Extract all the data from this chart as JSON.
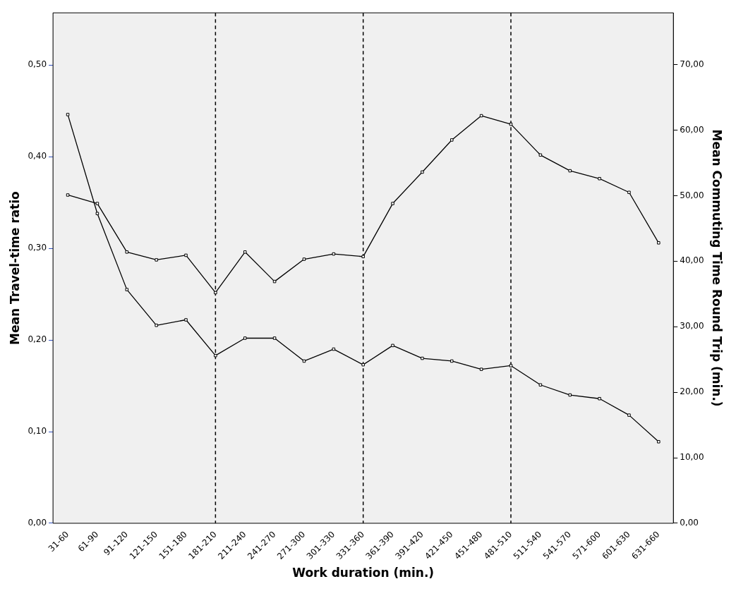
{
  "chart_data": {
    "type": "line",
    "xlabel": "Work duration (min.)",
    "ylabel": "Mean Travel-time ratio",
    "y2label": "Mean Commuting Time Round Trip (min.)",
    "categories": [
      "31-60",
      "61-90",
      "91-120",
      "121-150",
      "151-180",
      "181-210",
      "211-240",
      "241-270",
      "271-300",
      "301-330",
      "331-360",
      "361-390",
      "391-420",
      "421-450",
      "451-480",
      "481-510",
      "511-540",
      "541-570",
      "571-600",
      "601-630",
      "631-660"
    ],
    "series": [
      {
        "color": "#000000",
        "values": [
          0.446,
          0.338,
          0.255,
          0.216,
          0.222,
          0.183,
          0.202,
          0.202,
          0.177,
          0.19,
          0.173,
          0.194,
          0.18,
          0.177,
          0.168,
          0.172,
          0.151,
          0.14,
          0.136,
          0.118,
          0.089
        ]
      },
      {
        "color": "#000000",
        "axis": "y2",
        "values": [
          50.1,
          48.8,
          41.4,
          40.2,
          40.9,
          35.2,
          41.4,
          36.9,
          40.3,
          41.1,
          40.7,
          48.8,
          53.6,
          58.5,
          62.2,
          60.9,
          56.2,
          53.8,
          52.6,
          50.5,
          42.8
        ]
      }
    ],
    "ylim": [
      0,
      0.557
    ],
    "yticks": [
      {
        "value": 0,
        "label": "0,00"
      },
      {
        "value": 0.1,
        "label": "0,10"
      },
      {
        "value": 0.2,
        "label": "0,20"
      },
      {
        "value": 0.3,
        "label": "0,30"
      },
      {
        "value": 0.4,
        "label": "0,40"
      },
      {
        "value": 0.5,
        "label": "0,50"
      }
    ],
    "y2lim": [
      0,
      77.9
    ],
    "y2ticks": [
      {
        "value": 0,
        "label": "0,00"
      },
      {
        "value": 10,
        "label": "10,00"
      },
      {
        "value": 20,
        "label": "20,00"
      },
      {
        "value": 30,
        "label": "30,00"
      },
      {
        "value": 40,
        "label": "40,00"
      },
      {
        "value": 50,
        "label": "50,00"
      },
      {
        "value": 60,
        "label": "60,00"
      },
      {
        "value": 70,
        "label": "70,00"
      }
    ],
    "ref_lines": [
      {
        "axis": "x",
        "value": "181-210",
        "line_style": "dashed"
      },
      {
        "axis": "x",
        "value": "331-360",
        "line_style": "dashed"
      },
      {
        "axis": "x",
        "value": "481-510",
        "line_style": "dashed"
      }
    ],
    "grid": false,
    "legend": false,
    "marker": "square",
    "line_style": "solid"
  }
}
